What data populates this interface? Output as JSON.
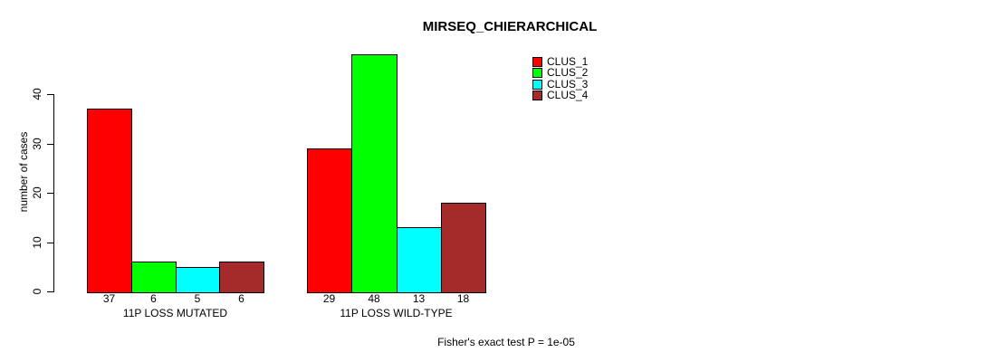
{
  "chart_data": {
    "type": "bar",
    "title": "MIRSEQ_CHIERARCHICAL",
    "ylabel": "number of cases",
    "xlabel": "",
    "categories": [
      "11P LOSS MUTATED",
      "11P LOSS WILD-TYPE"
    ],
    "series": [
      {
        "name": "CLUS_1",
        "color": "#ff0000",
        "values": [
          37,
          29
        ]
      },
      {
        "name": "CLUS_2",
        "color": "#00ff00",
        "values": [
          6,
          48
        ]
      },
      {
        "name": "CLUS_3",
        "color": "#00ffff",
        "values": [
          5,
          13
        ]
      },
      {
        "name": "CLUS_4",
        "color": "#a52a2a",
        "values": [
          6,
          18
        ]
      }
    ],
    "yticks": [
      0,
      10,
      20,
      30,
      40
    ],
    "ylim": [
      0,
      40
    ],
    "grid": false,
    "bar_value_labels_shown": true,
    "legend_position": "top-right",
    "legend_entries": [
      "CLUS_1",
      "CLUS_2",
      "CLUS_3",
      "CLUS_4"
    ],
    "annotation": "Fisher's exact test P = 1e-05"
  }
}
